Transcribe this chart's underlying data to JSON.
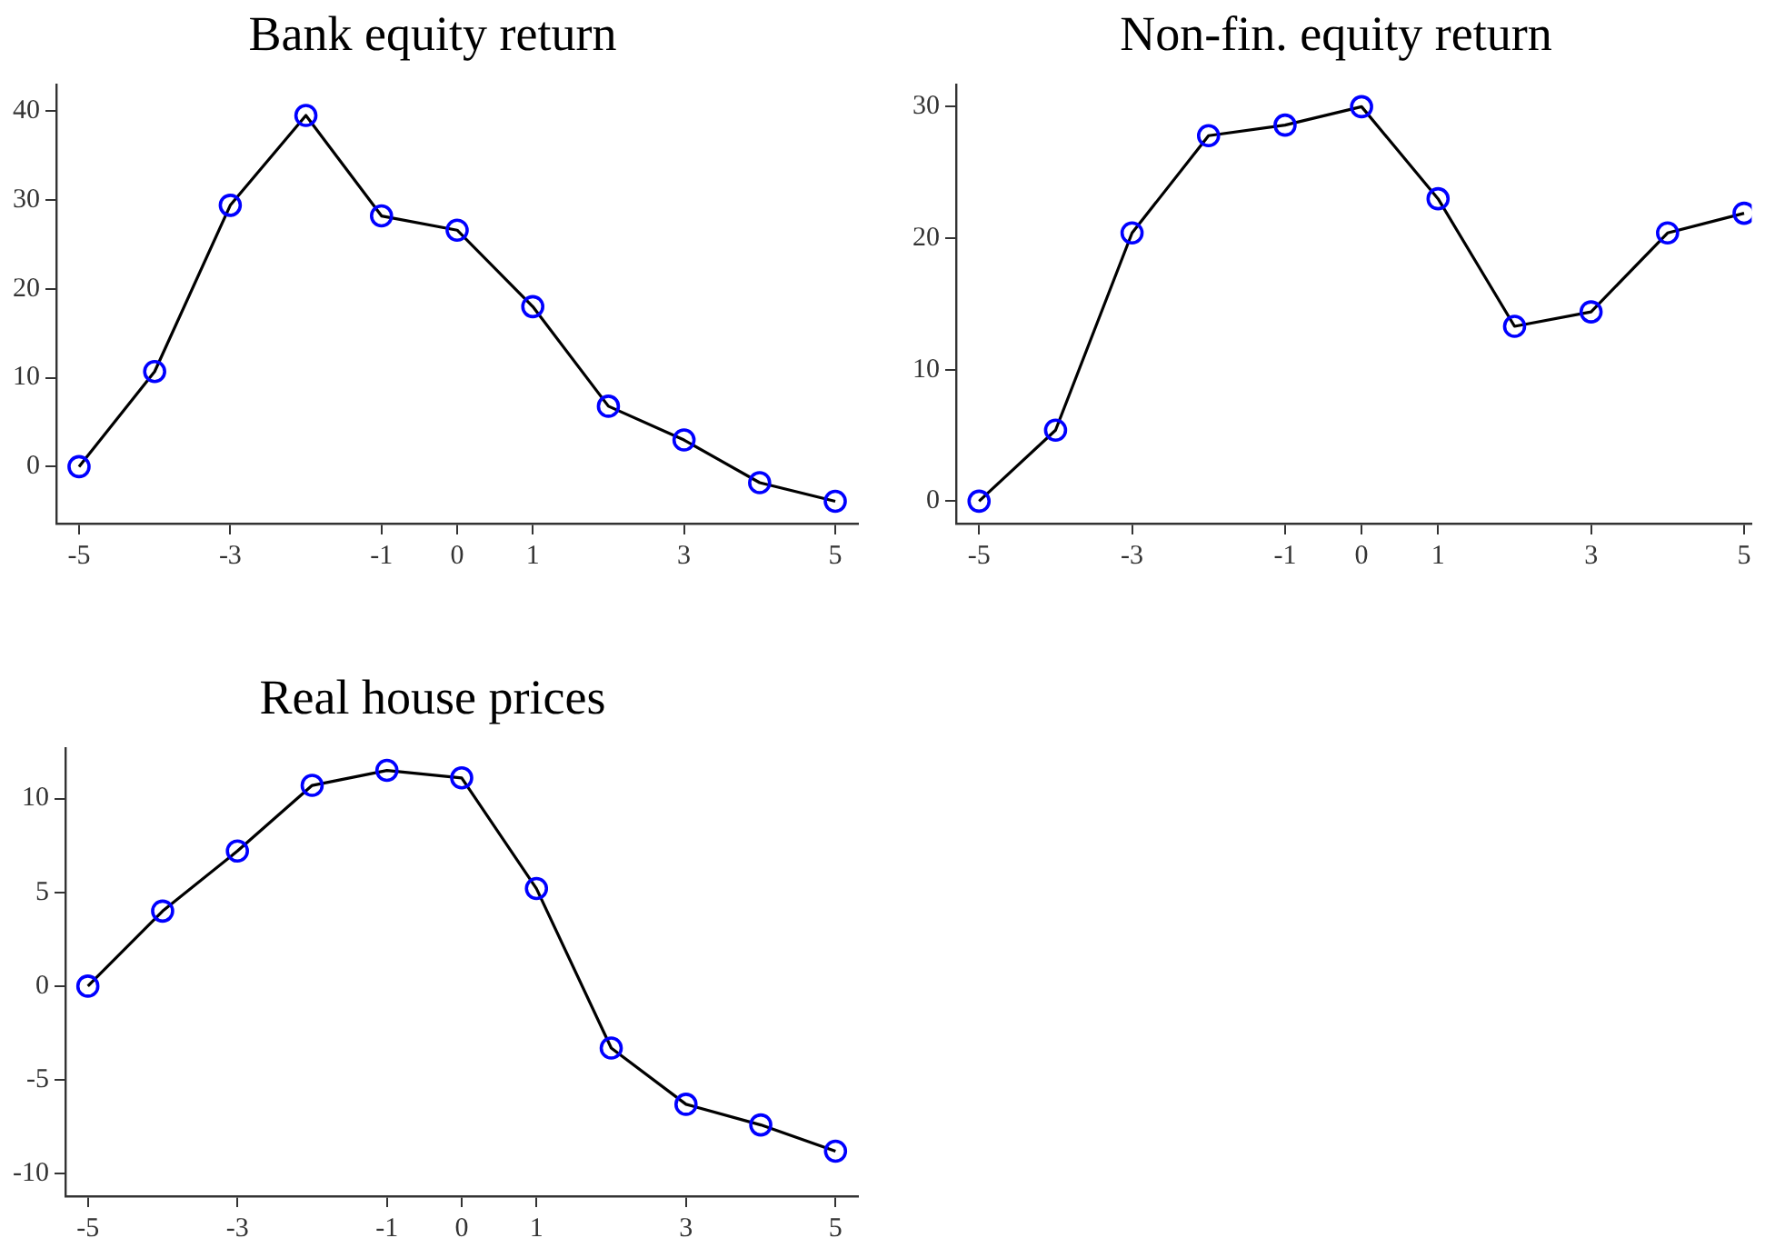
{
  "chart_data": [
    {
      "type": "line",
      "title": "Bank equity return",
      "x": [
        -5,
        -4,
        -3,
        -2,
        -1,
        0,
        1,
        2,
        3,
        4,
        5
      ],
      "marker": "circle",
      "grid": false,
      "xlim": [
        -5.3,
        5.3
      ],
      "xticks": [
        -5,
        -3,
        -1,
        0,
        1,
        3,
        5
      ],
      "ylim": [
        -6.4,
        43
      ],
      "yticks": [
        0,
        10,
        20,
        30,
        40
      ],
      "series": [
        {
          "color": "#000000",
          "colors": [
            "#0000ff",
            "#0000ff",
            "#0000ff",
            "#0000ff",
            "#0000ff",
            "#0000ff",
            "#0000ff",
            "#0000ff",
            "#0000ff",
            "#0000ff",
            "#0000ff"
          ],
          "values": [
            0,
            10.7,
            29.4,
            39.5,
            28.2,
            26.6,
            18.0,
            6.8,
            3.0,
            -1.8,
            -3.9
          ]
        }
      ]
    },
    {
      "type": "line",
      "title": "Non-fin. equity return",
      "x": [
        -5,
        -4,
        -3,
        -2,
        -1,
        0,
        1,
        2,
        3,
        4,
        5
      ],
      "marker": "circle",
      "grid": false,
      "xlim": [
        -5.3,
        5.1
      ],
      "xticks": [
        -5,
        -3,
        -1,
        0,
        1,
        3,
        5
      ],
      "ylim": [
        -1.7,
        31.7
      ],
      "yticks": [
        0,
        10,
        20,
        30
      ],
      "series": [
        {
          "color": "#000000",
          "colors": [
            "#0000ff",
            "#0000ff",
            "#0000ff",
            "#0000ff",
            "#0000ff",
            "#0000ff",
            "#0000ff",
            "#0000ff",
            "#0000ff",
            "#0000ff",
            "#0000ff"
          ],
          "values": [
            0,
            5.4,
            20.4,
            27.8,
            28.6,
            30.0,
            23.0,
            13.3,
            14.4,
            20.4,
            21.9
          ]
        }
      ]
    },
    {
      "type": "line",
      "title": "Real house prices",
      "x": [
        -5,
        -4,
        -3,
        -2,
        -1,
        0,
        1,
        2,
        3,
        4,
        5
      ],
      "marker": "circle",
      "grid": false,
      "xlim": [
        -5.3,
        5.3
      ],
      "xticks": [
        -5,
        -3,
        -1,
        0,
        1,
        3,
        5
      ],
      "ylim": [
        -11.2,
        12.7
      ],
      "yticks": [
        -10,
        -5,
        0,
        5,
        10
      ],
      "series": [
        {
          "color": "#000000",
          "colors": [
            "#0000ff",
            "#0000ff",
            "#0000ff",
            "#0000ff",
            "#0000ff",
            "#0000ff",
            "#0000ff",
            "#0000ff",
            "#0000ff",
            "#0000ff",
            "#0000ff"
          ],
          "values": [
            0,
            4.0,
            7.2,
            10.7,
            11.5,
            11.1,
            5.2,
            -3.3,
            -6.3,
            -7.4,
            -8.8
          ]
        }
      ]
    }
  ]
}
